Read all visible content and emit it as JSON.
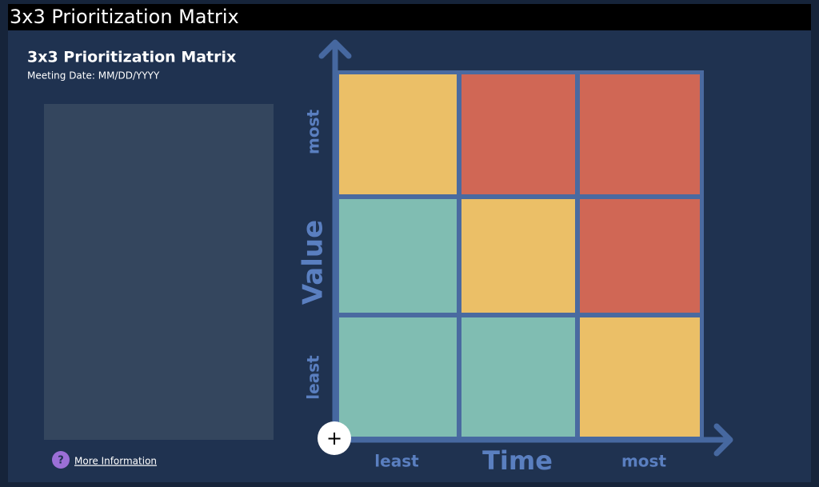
{
  "header": {
    "title": "3x3 Prioritization Matrix"
  },
  "board": {
    "title": "3x3 Prioritization Matrix",
    "subtitle": "Meeting Date: MM/DD/YYYY",
    "y_axis": {
      "label": "Value",
      "low": "least",
      "high": "most"
    },
    "x_axis": {
      "label": "Time",
      "low": "least",
      "high": "most"
    },
    "add_button": "+",
    "help_icon": "?",
    "help_link": "More Information"
  }
}
